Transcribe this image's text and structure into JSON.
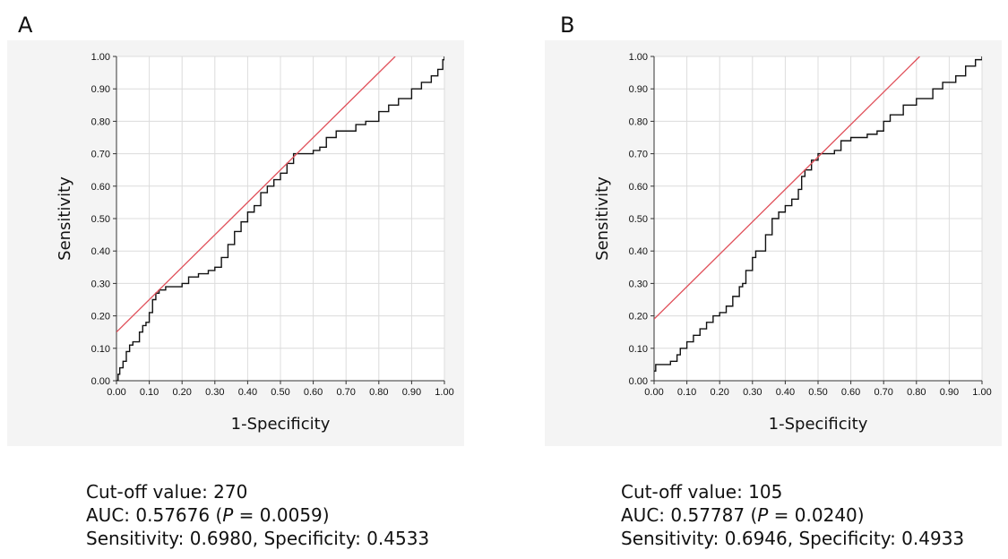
{
  "panels": [
    {
      "letter": "A",
      "stats": {
        "cutoff_label": "Cut-off value: 270",
        "auc_prefix": "AUC: 0.57676 (",
        "p_symbol": "P",
        "auc_suffix": " = 0.0059)",
        "sens_spec": "Sensitivity: 0.6980, Specificity: 0.4533"
      }
    },
    {
      "letter": "B",
      "stats": {
        "cutoff_label": "Cut-off value: 105",
        "auc_prefix": "AUC: 0.57787 (",
        "p_symbol": "P",
        "auc_suffix": " = 0.0240)",
        "sens_spec": "Sensitivity: 0.6946, Specificity: 0.4933"
      }
    }
  ],
  "chart_data": [
    {
      "type": "line",
      "xlabel": "1-Specificity",
      "ylabel": "Sensitivity",
      "xlim": [
        0,
        1
      ],
      "ylim": [
        0,
        1
      ],
      "xticks": [
        "0.00",
        "0.10",
        "0.20",
        "0.30",
        "0.40",
        "0.50",
        "0.60",
        "0.70",
        "0.80",
        "0.90",
        "1.00"
      ],
      "yticks": [
        "0.00",
        "0.10",
        "0.20",
        "0.30",
        "0.40",
        "0.50",
        "0.60",
        "0.70",
        "0.80",
        "0.90",
        "1.00"
      ],
      "grid": true,
      "series": [
        {
          "color": "#111111",
          "x": [
            0,
            0.005,
            0.01,
            0.02,
            0.03,
            0.04,
            0.05,
            0.07,
            0.08,
            0.09,
            0.1,
            0.11,
            0.12,
            0.13,
            0.15,
            0.17,
            0.2,
            0.22,
            0.25,
            0.28,
            0.3,
            0.32,
            0.34,
            0.36,
            0.38,
            0.4,
            0.42,
            0.44,
            0.46,
            0.48,
            0.5,
            0.52,
            0.54,
            0.56,
            0.6,
            0.62,
            0.64,
            0.67,
            0.7,
            0.73,
            0.76,
            0.8,
            0.83,
            0.86,
            0.9,
            0.93,
            0.96,
            0.98,
            0.995,
            1.0
          ],
          "y": [
            0,
            0.02,
            0.04,
            0.06,
            0.09,
            0.11,
            0.12,
            0.15,
            0.17,
            0.18,
            0.21,
            0.25,
            0.27,
            0.28,
            0.29,
            0.29,
            0.3,
            0.32,
            0.33,
            0.34,
            0.35,
            0.38,
            0.42,
            0.46,
            0.49,
            0.52,
            0.54,
            0.58,
            0.6,
            0.62,
            0.64,
            0.67,
            0.7,
            0.7,
            0.71,
            0.72,
            0.75,
            0.77,
            0.77,
            0.79,
            0.8,
            0.83,
            0.85,
            0.87,
            0.9,
            0.92,
            0.94,
            0.96,
            0.99,
            1.0
          ]
        },
        {
          "color": "#e0505a",
          "x": [
            0,
            0.85
          ],
          "y": [
            0.15,
            1.0
          ]
        }
      ]
    },
    {
      "type": "line",
      "xlabel": "1-Specificity",
      "ylabel": "Sensitivity",
      "xlim": [
        0,
        1
      ],
      "ylim": [
        0,
        1
      ],
      "xticks": [
        "0.00",
        "0.10",
        "0.20",
        "0.30",
        "0.40",
        "0.50",
        "0.60",
        "0.70",
        "0.80",
        "0.90",
        "1.00"
      ],
      "yticks": [
        "0.00",
        "0.10",
        "0.20",
        "0.30",
        "0.40",
        "0.50",
        "0.60",
        "0.70",
        "0.80",
        "0.90",
        "1.00"
      ],
      "grid": true,
      "series": [
        {
          "color": "#111111",
          "x": [
            0,
            0.005,
            0.02,
            0.05,
            0.07,
            0.08,
            0.1,
            0.12,
            0.14,
            0.16,
            0.18,
            0.2,
            0.22,
            0.24,
            0.26,
            0.27,
            0.28,
            0.3,
            0.31,
            0.33,
            0.34,
            0.36,
            0.38,
            0.4,
            0.42,
            0.44,
            0.45,
            0.46,
            0.48,
            0.5,
            0.52,
            0.55,
            0.57,
            0.6,
            0.65,
            0.68,
            0.7,
            0.72,
            0.76,
            0.8,
            0.85,
            0.88,
            0.92,
            0.95,
            0.98,
            1.0
          ],
          "y": [
            0.03,
            0.05,
            0.05,
            0.06,
            0.08,
            0.1,
            0.12,
            0.14,
            0.16,
            0.18,
            0.2,
            0.21,
            0.23,
            0.26,
            0.29,
            0.3,
            0.34,
            0.38,
            0.4,
            0.4,
            0.45,
            0.5,
            0.52,
            0.54,
            0.56,
            0.59,
            0.63,
            0.65,
            0.68,
            0.7,
            0.7,
            0.71,
            0.74,
            0.75,
            0.76,
            0.77,
            0.8,
            0.82,
            0.85,
            0.87,
            0.9,
            0.92,
            0.94,
            0.97,
            0.99,
            1.0
          ]
        },
        {
          "color": "#e0505a",
          "x": [
            0,
            0.81
          ],
          "y": [
            0.19,
            1.0
          ]
        }
      ]
    }
  ]
}
